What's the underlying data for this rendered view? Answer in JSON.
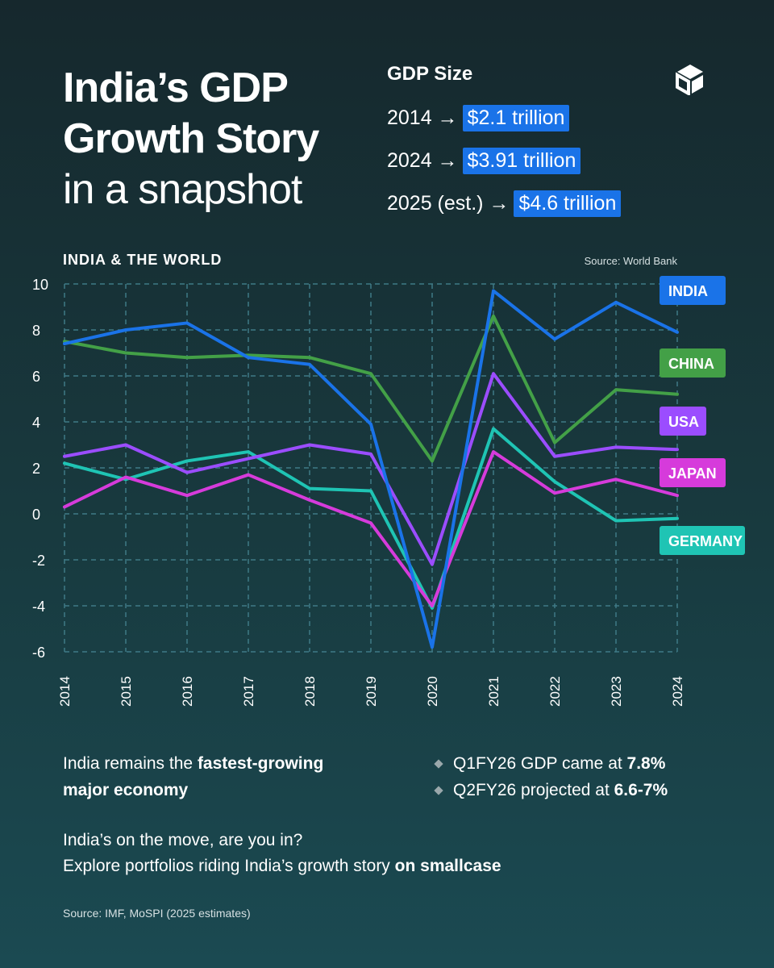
{
  "title": {
    "line1": "India’s GDP",
    "line2": "Growth Story",
    "line3": "in a snapshot"
  },
  "gdp_size": {
    "heading": "GDP Size",
    "rows": [
      {
        "label": "2014 →",
        "value": "$2.1 trillion"
      },
      {
        "label": "2024 →",
        "value": "$3.91 trillion"
      },
      {
        "label": "2025 (est.) →",
        "value": "$4.6 trillion"
      }
    ]
  },
  "logo_icon": "smallcase-cube-icon",
  "chart_header": {
    "title": "INDIA & THE WORLD",
    "source": "Source: World Bank"
  },
  "chart_data": {
    "type": "line",
    "x": [
      "2014",
      "2015",
      "2016",
      "2017",
      "2018",
      "2019",
      "2020",
      "2021",
      "2022",
      "2023",
      "2024"
    ],
    "ylim": [
      -6,
      10
    ],
    "yticks": [
      "10",
      "8",
      "6",
      "4",
      "2",
      "0",
      "-2",
      "-4",
      "-6"
    ],
    "ytick_values": [
      10,
      8,
      6,
      4,
      2,
      0,
      -2,
      -4,
      -6
    ],
    "grid": true,
    "series": [
      {
        "name": "INDIA",
        "color": "#1a73e8",
        "values": [
          7.4,
          8.0,
          8.3,
          6.8,
          6.5,
          3.9,
          -5.8,
          9.7,
          7.6,
          9.2,
          7.9
        ]
      },
      {
        "name": "CHINA",
        "color": "#43a047",
        "values": [
          7.5,
          7.0,
          6.8,
          6.9,
          6.8,
          6.1,
          2.3,
          8.6,
          3.1,
          5.4,
          5.2
        ]
      },
      {
        "name": "USA",
        "color": "#9b4dff",
        "values": [
          2.5,
          3.0,
          1.8,
          2.4,
          3.0,
          2.6,
          -2.2,
          6.1,
          2.5,
          2.9,
          2.8
        ]
      },
      {
        "name": "JAPAN",
        "color": "#d63bdb",
        "values": [
          0.3,
          1.6,
          0.8,
          1.7,
          0.6,
          -0.4,
          -4.0,
          2.7,
          0.9,
          1.5,
          0.8
        ]
      },
      {
        "name": "GERMANY",
        "color": "#1fc4b4",
        "values": [
          2.2,
          1.5,
          2.3,
          2.7,
          1.1,
          1.0,
          -4.1,
          3.7,
          1.4,
          -0.3,
          -0.2
        ]
      }
    ]
  },
  "summary": {
    "left_text1": "India remains the ",
    "left_bold1": "fastest-growing",
    "left_bold2": "major economy",
    "bullets": [
      {
        "text": "Q1FY26 GDP came at ",
        "bold": "7.8%"
      },
      {
        "text": "Q2FY26 projected at ",
        "bold": "6.6-7%"
      }
    ]
  },
  "cta": {
    "line1": "India’s on the move, are you in?",
    "line2_text": "Explore portfolios riding India’s growth story ",
    "line2_bold": "on smallcase"
  },
  "footer": "Source: IMF, MoSPI (2025 estimates)"
}
